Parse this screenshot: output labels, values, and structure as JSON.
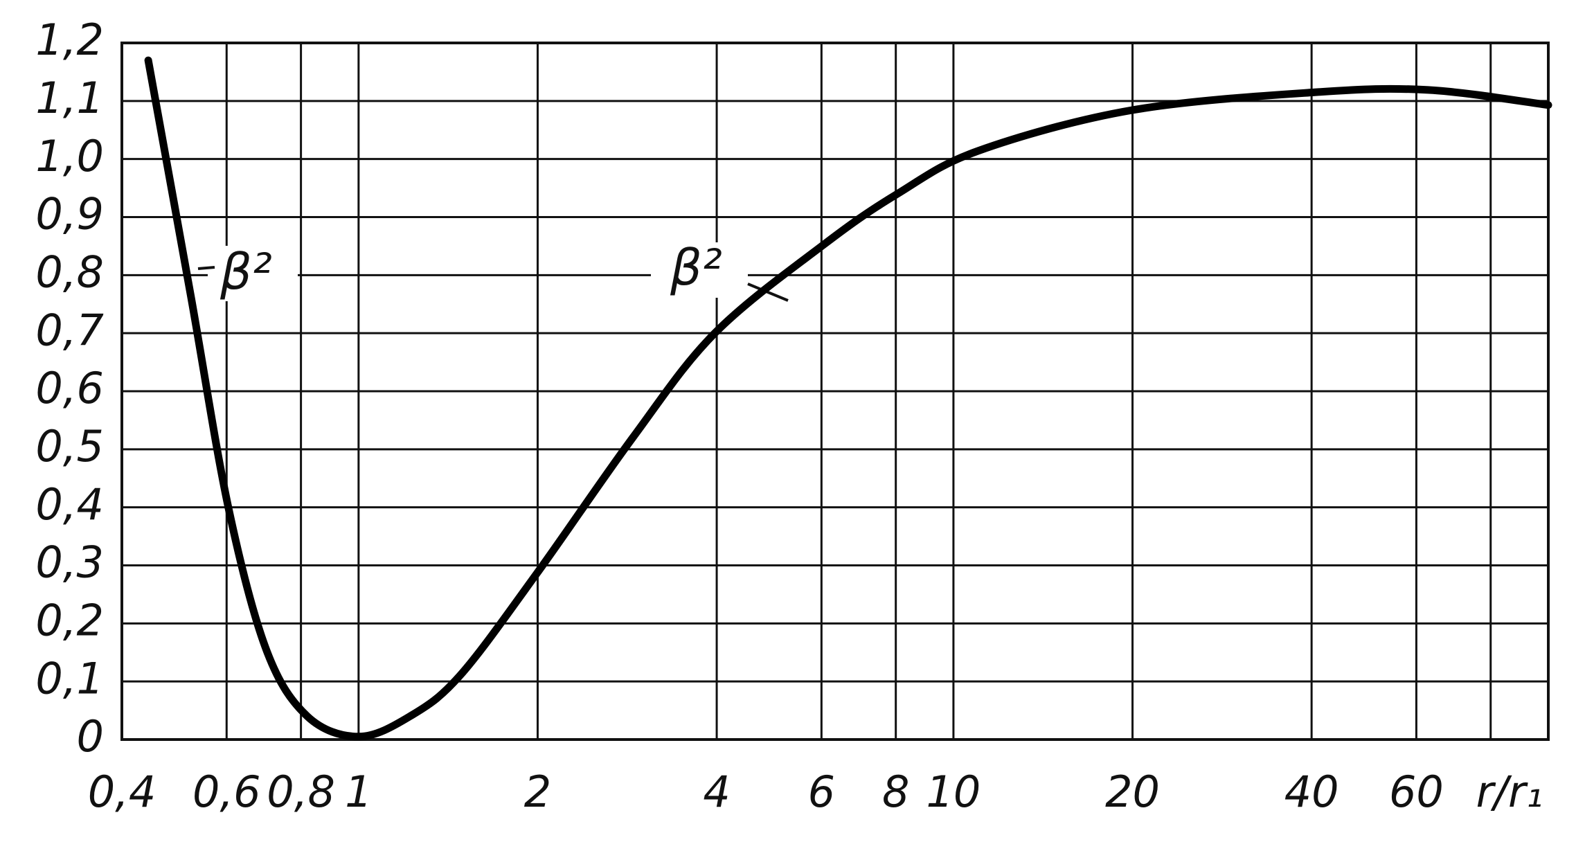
{
  "chart_data": {
    "type": "line",
    "xscale": "log",
    "xlabel": "r/r₁",
    "annotations": [
      "β²",
      "β²"
    ],
    "color": "#000000",
    "grid": true,
    "x": [
      0.443,
      0.522,
      0.604,
      0.7,
      0.82,
      1,
      1.22,
      1.48,
      1.99,
      2.89,
      3.97,
      6.06,
      8.05,
      11.0,
      19.9,
      40.5,
      62.8,
      100
    ],
    "values": [
      1.17,
      0.766,
      0.4,
      0.154,
      0.04,
      0.005,
      0.04,
      0.11,
      0.285,
      0.52,
      0.7,
      0.853,
      0.94,
      1.014,
      1.084,
      1.115,
      1.119,
      1.093
    ],
    "xlim": [
      0.4,
      100
    ],
    "xticks": [
      {
        "value": 0.4,
        "label": "0,4"
      },
      {
        "value": 0.6,
        "label": "0,6"
      },
      {
        "value": 0.8,
        "label": "0,8"
      },
      1,
      2,
      4,
      6,
      8,
      10,
      20,
      40,
      60
    ],
    "xminor_ticks": [
      80
    ],
    "ylim": [
      0,
      1.2
    ],
    "yticks": [
      0,
      {
        "value": 0.1,
        "label": "0,1"
      },
      {
        "value": 0.2,
        "label": "0,2"
      },
      {
        "value": 0.3,
        "label": "0,3"
      },
      {
        "value": 0.4,
        "label": "0,4"
      },
      {
        "value": 0.5,
        "label": "0,5"
      },
      {
        "value": 0.6,
        "label": "0,6"
      },
      {
        "value": 0.7,
        "label": "0,7"
      },
      {
        "value": 0.8,
        "label": "0,8"
      },
      {
        "value": 0.9,
        "label": "0,9"
      },
      {
        "value": 1.0,
        "label": "1,0"
      },
      {
        "value": 1.1,
        "label": "1,1"
      },
      {
        "value": 1.2,
        "label": "1,2"
      }
    ]
  }
}
